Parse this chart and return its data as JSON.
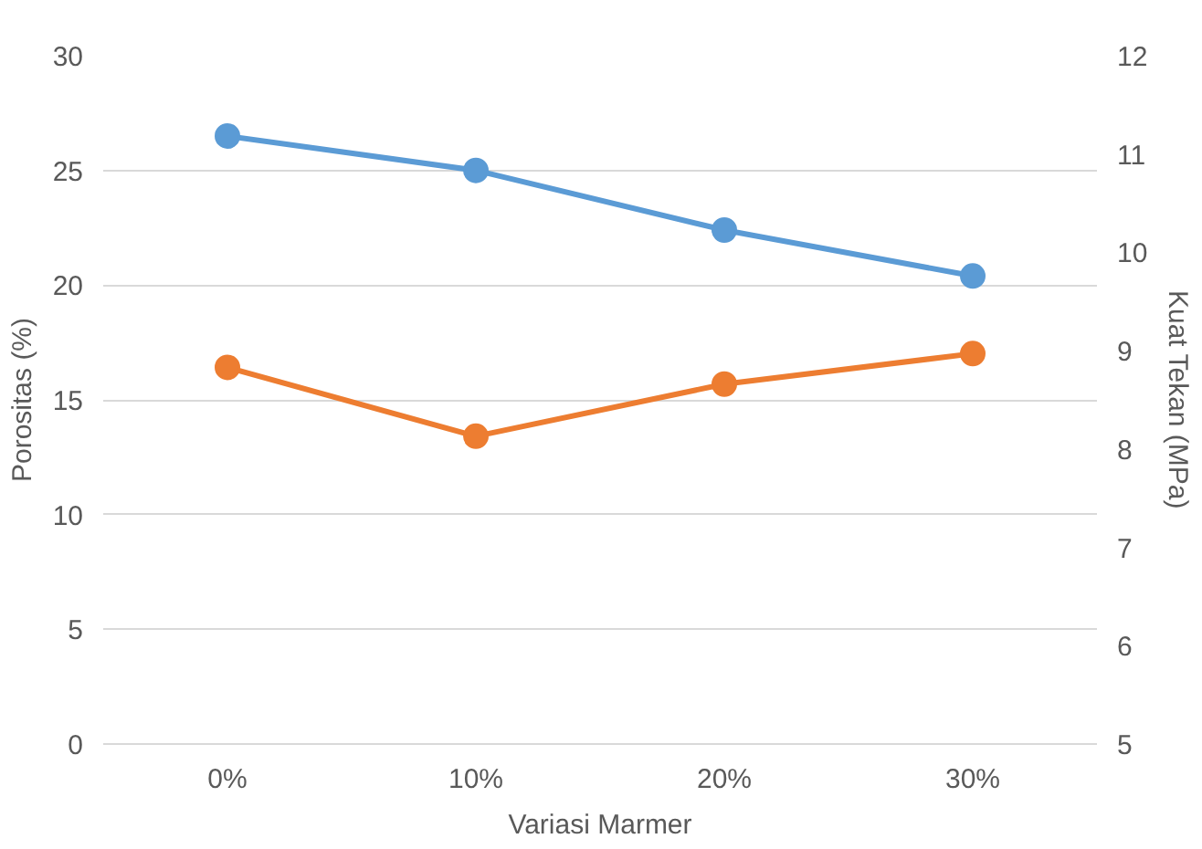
{
  "chart_data": {
    "type": "line",
    "xlabel": "Variasi Marmer",
    "ylabel": "Porositas (%)",
    "y2label": "Kuat Tekan (MPa)",
    "categories": [
      "0%",
      "10%",
      "20%",
      "30%"
    ],
    "series": [
      {
        "color": "#5b9bd5",
        "values": [
          26.5,
          25.0,
          22.4,
          20.4
        ]
      },
      {
        "color": "#ed7d31",
        "values": [
          8.83,
          8.13,
          8.66,
          8.97
        ],
        "axis": "y2"
      }
    ],
    "ylim": [
      0,
      30
    ],
    "yticks": [
      0,
      5,
      10,
      15,
      20,
      25,
      30
    ],
    "y2lim": [
      5,
      12
    ],
    "y2ticks": [
      5,
      6,
      7,
      8,
      9,
      10,
      11,
      12
    ],
    "grid": "y",
    "marker": "circle",
    "line_style": "solid"
  }
}
